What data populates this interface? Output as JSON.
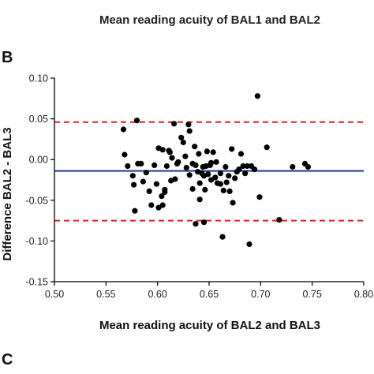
{
  "top_caption": "Mean reading acuity of BAL1 and BAL2",
  "panel_label_b": "B",
  "panel_label_c": "C",
  "chart_data": {
    "type": "scatter",
    "title": "",
    "xlabel": "Mean reading acuity of BAL2 and BAL3",
    "ylabel": "Difference BAL2 - BAL3",
    "xlim": [
      0.5,
      0.8
    ],
    "ylim": [
      -0.15,
      0.1
    ],
    "x_ticks": [
      "0.50",
      "0.55",
      "0.60",
      "0.65",
      "0.70",
      "0.75",
      "0.80"
    ],
    "y_ticks": [
      "0.10",
      "0.05",
      "0.00",
      "-0.05",
      "-0.10",
      "-0.15"
    ],
    "grid": false,
    "mean_difference": -0.014,
    "upper_limit": 0.046,
    "lower_limit": -0.075,
    "colors": {
      "points": "#000000",
      "mean_line": "#1f3a93",
      "limit_lines": "#e02020"
    },
    "points": [
      [
        0.567,
        0.037
      ],
      [
        0.568,
        0.006
      ],
      [
        0.571,
        -0.008
      ],
      [
        0.576,
        -0.02
      ],
      [
        0.577,
        -0.031
      ],
      [
        0.578,
        -0.063
      ],
      [
        0.58,
        0.048
      ],
      [
        0.581,
        -0.005
      ],
      [
        0.584,
        -0.005
      ],
      [
        0.586,
        -0.027
      ],
      [
        0.589,
        -0.016
      ],
      [
        0.592,
        -0.039
      ],
      [
        0.594,
        -0.056
      ],
      [
        0.597,
        -0.007
      ],
      [
        0.599,
        -0.03
      ],
      [
        0.601,
        0.014
      ],
      [
        0.601,
        -0.059
      ],
      [
        0.604,
        -0.045
      ],
      [
        0.605,
        0.012
      ],
      [
        0.605,
        -0.056
      ],
      [
        0.607,
        -0.04
      ],
      [
        0.607,
        -0.037
      ],
      [
        0.609,
        -0.008
      ],
      [
        0.611,
        0.011
      ],
      [
        0.612,
        0.009
      ],
      [
        0.613,
        -0.026
      ],
      [
        0.614,
        0.002
      ],
      [
        0.616,
        0.044
      ],
      [
        0.617,
        -0.024
      ],
      [
        0.619,
        -0.005
      ],
      [
        0.62,
        -0.003
      ],
      [
        0.623,
        0.027
      ],
      [
        0.625,
        0.021
      ],
      [
        0.627,
        0.004
      ],
      [
        0.628,
        -0.01
      ],
      [
        0.63,
        0.043
      ],
      [
        0.631,
        0.035
      ],
      [
        0.631,
        -0.019
      ],
      [
        0.634,
        -0.036
      ],
      [
        0.634,
        -0.005
      ],
      [
        0.636,
        0.016
      ],
      [
        0.637,
        -0.007
      ],
      [
        0.637,
        -0.079
      ],
      [
        0.639,
        -0.015
      ],
      [
        0.64,
        0.007
      ],
      [
        0.641,
        -0.029
      ],
      [
        0.641,
        -0.049
      ],
      [
        0.643,
        -0.017
      ],
      [
        0.644,
        -0.009
      ],
      [
        0.645,
        -0.02
      ],
      [
        0.645,
        -0.077
      ],
      [
        0.646,
        -0.037
      ],
      [
        0.647,
        -0.008
      ],
      [
        0.648,
        0.01
      ],
      [
        0.649,
        -0.018
      ],
      [
        0.651,
        -0.007
      ],
      [
        0.652,
        -0.025
      ],
      [
        0.652,
        -0.004
      ],
      [
        0.654,
        0.009
      ],
      [
        0.656,
        -0.022
      ],
      [
        0.657,
        -0.003
      ],
      [
        0.658,
        -0.029
      ],
      [
        0.661,
        -0.017
      ],
      [
        0.661,
        -0.03
      ],
      [
        0.663,
        -0.095
      ],
      [
        0.664,
        -0.038
      ],
      [
        0.666,
        -0.009
      ],
      [
        0.667,
        -0.028
      ],
      [
        0.669,
        -0.02
      ],
      [
        0.67,
        -0.039
      ],
      [
        0.672,
        0.013
      ],
      [
        0.673,
        -0.053
      ],
      [
        0.675,
        -0.023
      ],
      [
        0.677,
        -0.015
      ],
      [
        0.679,
        -0.012
      ],
      [
        0.681,
        0.007
      ],
      [
        0.683,
        -0.008
      ],
      [
        0.685,
        -0.017
      ],
      [
        0.687,
        -0.008
      ],
      [
        0.689,
        -0.104
      ],
      [
        0.691,
        -0.008
      ],
      [
        0.694,
        -0.012
      ],
      [
        0.697,
        0.078
      ],
      [
        0.699,
        -0.046
      ],
      [
        0.706,
        0.015
      ],
      [
        0.718,
        -0.074
      ],
      [
        0.731,
        -0.009
      ],
      [
        0.743,
        -0.005
      ],
      [
        0.746,
        -0.009
      ]
    ]
  }
}
